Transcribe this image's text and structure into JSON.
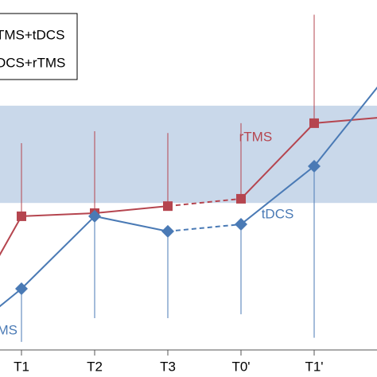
{
  "chart_data": {
    "type": "line",
    "categories": [
      null,
      "T1",
      "T2",
      "T3",
      "T0'",
      "T1'",
      null
    ],
    "series": [
      {
        "name": "TMS+tDCS",
        "color": "#b5454f",
        "marker": "square",
        "error_direction": "up",
        "values": [
          1.1,
          38.2,
          39.1,
          41.1,
          43.2,
          64.8,
          66.6
        ],
        "errors": [
          null,
          20.9,
          23.4,
          20.9,
          21.6,
          31.0,
          null
        ]
      },
      {
        "name": "DCS+rTMS",
        "color": "#4a7ab5",
        "marker": "diamond",
        "error_direction": "down",
        "values": [
          0.5,
          17.5,
          38.2,
          33.9,
          35.9,
          52.5,
          78.6
        ],
        "errors": [
          null,
          15.2,
          29.1,
          24.8,
          25.7,
          49.0,
          null
        ]
      }
    ],
    "ylim": [
      0,
      100
    ],
    "band": [
      42.0,
      69.8
    ],
    "band_color": "#c9d8ea",
    "annotations": [
      {
        "text": "rTMS",
        "x": 4.2,
        "y": 60.7,
        "color": "#b5454f"
      },
      {
        "text": "tDCS",
        "x": 4.5,
        "y": 38.6,
        "color": "#4a7ab5"
      },
      {
        "text": "TMS",
        "x": 0.75,
        "y": 5.5,
        "color": "#4a7ab5"
      }
    ]
  }
}
